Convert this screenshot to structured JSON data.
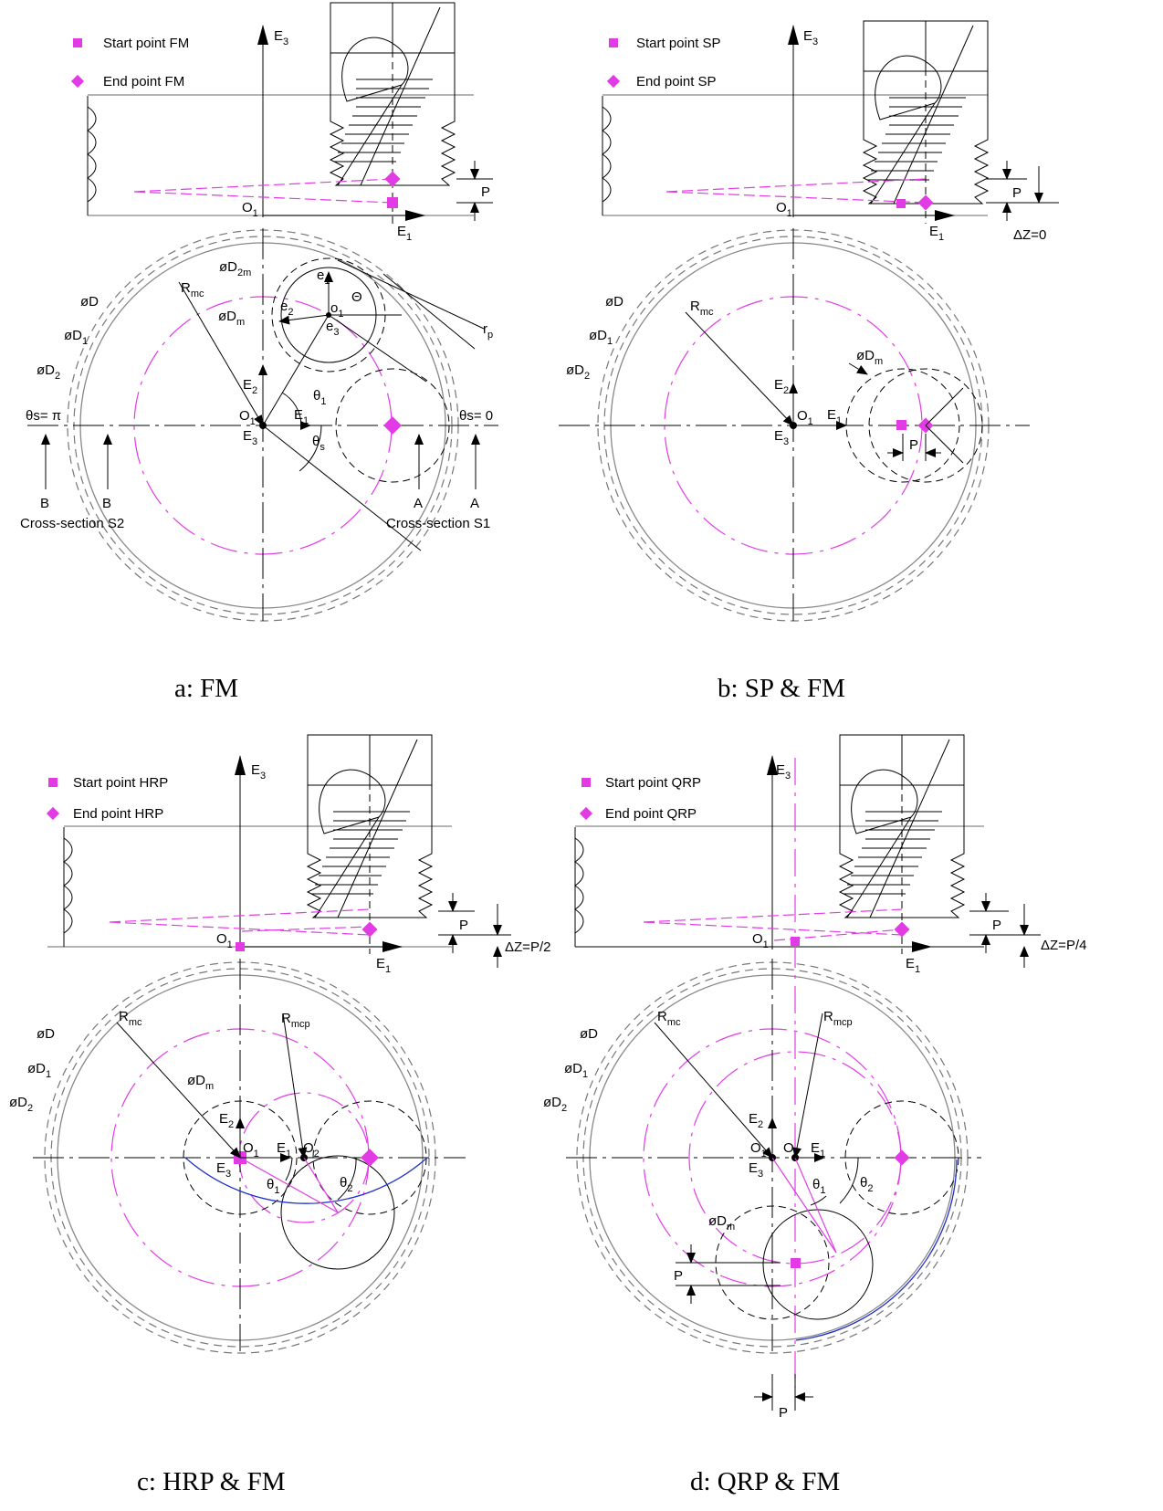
{
  "panels": [
    {
      "id": "a",
      "caption": "a: FM",
      "legend": {
        "start": "Start point FM",
        "end": "End point FM"
      },
      "labels": {
        "E3": "E",
        "E1": "E",
        "O1": "O",
        "P": "P",
        "D": "øD",
        "D1": "øD",
        "D2": "øD",
        "D2m": "øD",
        "Dm": "øD",
        "Rmc": "R",
        "e1": "e",
        "e2": "e",
        "e3": "e",
        "o1": "o",
        "Theta": "Θ",
        "rp": "r",
        "theta1": "θ",
        "thetas": "θ",
        "thetas_pi": "θs= π",
        "thetas_0": "θs= 0",
        "B": "B",
        "A": "A",
        "cs2": "Cross-section S2",
        "cs1": "Cross-section S1",
        "E2": "E"
      }
    },
    {
      "id": "b",
      "caption": "b: SP & FM",
      "legend": {
        "start": "Start point SP",
        "end": "End point SP"
      },
      "labels": {
        "dz": "ΔZ=0",
        "Rmc": "R",
        "Dm": "øD",
        "P": "P"
      }
    },
    {
      "id": "c",
      "caption": "c: HRP & FM",
      "legend": {
        "start": "Start point HRP",
        "end": "End point HRP"
      },
      "labels": {
        "dz": "ΔZ=P/2",
        "Rmc": "R",
        "Rmcp": "R",
        "Dm": "øD",
        "O2": "O",
        "theta1": "θ",
        "theta2": "θ",
        "P": "P"
      }
    },
    {
      "id": "d",
      "caption": "d: QRP & FM",
      "legend": {
        "start": "Start point QRP",
        "end": "End point QRP"
      },
      "labels": {
        "dz": "ΔZ=P/4",
        "Rmc": "R",
        "Rmcp": "R",
        "Dm": "øD",
        "O2": "O",
        "theta1": "θ",
        "theta2": "θ",
        "P": "P"
      }
    }
  ],
  "subscripts": {
    "one": "1",
    "two": "2",
    "three": "3",
    "mc": "mc",
    "mcp": "mc p",
    "m": "m",
    "two_m": "2m",
    "p": "p",
    "s": "s"
  },
  "colors": {
    "start": "#e23be6",
    "end": "#e23be6",
    "path": "#e23be6",
    "interp": "#2030d0"
  }
}
